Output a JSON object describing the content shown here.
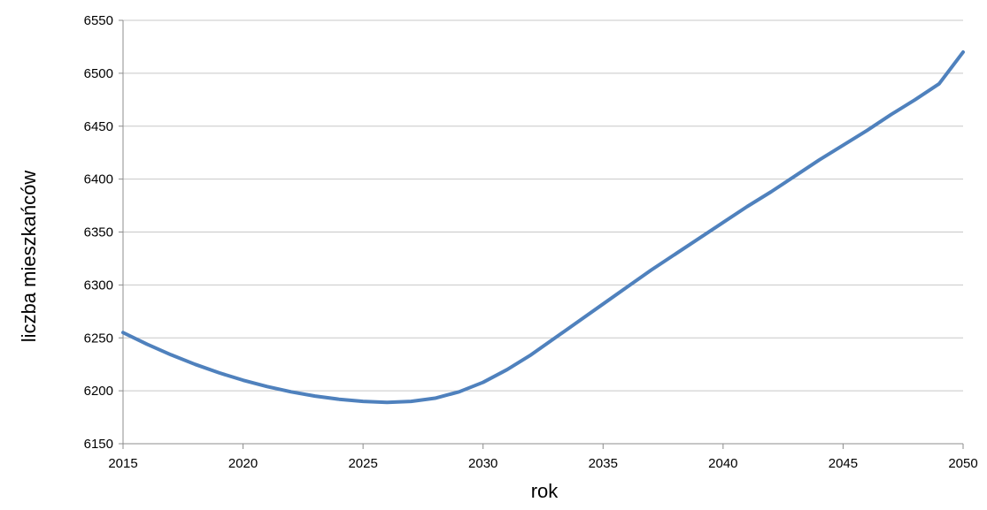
{
  "chart_data": {
    "type": "line",
    "title": "",
    "xlabel": "rok",
    "ylabel": "liczba mieszkańców",
    "xlim": [
      2015,
      2050
    ],
    "ylim": [
      6150,
      6550
    ],
    "x_ticks": [
      2015,
      2020,
      2025,
      2030,
      2035,
      2040,
      2045,
      2050
    ],
    "y_ticks": [
      6150,
      6200,
      6250,
      6300,
      6350,
      6400,
      6450,
      6500,
      6550
    ],
    "grid": true,
    "legend": "none",
    "series": [
      {
        "color": "#4F81BD",
        "x": [
          2015,
          2016,
          2017,
          2018,
          2019,
          2020,
          2021,
          2022,
          2023,
          2024,
          2025,
          2026,
          2027,
          2028,
          2029,
          2030,
          2031,
          2032,
          2033,
          2034,
          2035,
          2036,
          2037,
          2038,
          2039,
          2040,
          2041,
          2042,
          2043,
          2044,
          2045,
          2046,
          2047,
          2048,
          2049,
          2050
        ],
        "values": [
          6255,
          6244,
          6234,
          6225,
          6217,
          6210,
          6204,
          6199,
          6195,
          6192,
          6190,
          6189,
          6190,
          6193,
          6199,
          6208,
          6220,
          6234,
          6250,
          6266,
          6282,
          6298,
          6314,
          6329,
          6344,
          6359,
          6374,
          6388,
          6403,
          6418,
          6432,
          6446,
          6461,
          6475,
          6490,
          6520
        ]
      }
    ]
  }
}
